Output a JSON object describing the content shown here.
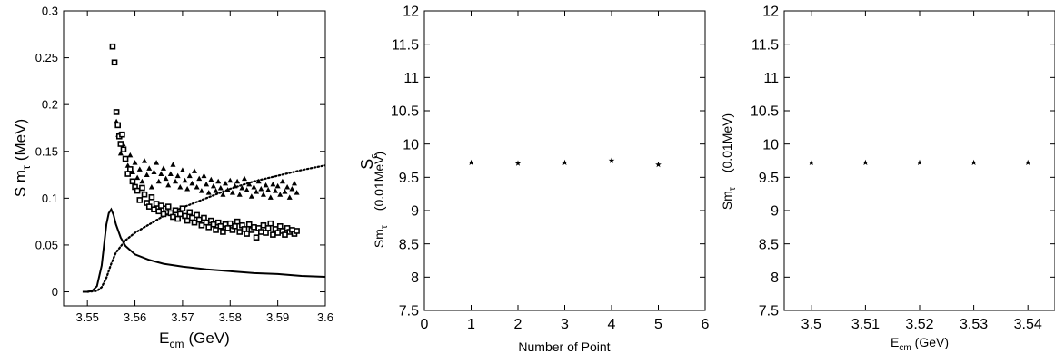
{
  "figure": {
    "panel_a": {
      "xlabel": "E",
      "xlabel_sub": "cm",
      "xlabel_unit": "(GeV)",
      "ylabel": "S m",
      "ylabel_sub": "τ",
      "ylabel_unit": "(MeV)"
    },
    "panel_b": {
      "xlabel": "Number of Point",
      "ylabel_top": "S",
      "ylabel_top_sub": "c",
      "ylabel": "Sm",
      "ylabel_sub": "τ",
      "ylabel_unit": "(0.01MeV)"
    },
    "panel_c": {
      "xlabel": "E",
      "xlabel_sub": "cm",
      "xlabel_unit": "(GeV)",
      "ylabel": "Sm",
      "ylabel_sub": "τ",
      "ylabel_unit": "(0.01MeV)"
    }
  },
  "chart_data": [
    {
      "type": "scatter",
      "title": "",
      "xlim": [
        3.545,
        3.6
      ],
      "ylim": [
        -0.015,
        0.3
      ],
      "xticks": [
        "3.55",
        "3.56",
        "3.57",
        "3.58",
        "3.59",
        "3.6"
      ],
      "yticks": [
        "0",
        "0.05",
        "0.1",
        "0.15",
        "0.2",
        "0.25",
        "0.3"
      ],
      "series": [
        {
          "style": "solid-line",
          "x": [
            3.549,
            3.55,
            3.551,
            3.552,
            3.553,
            3.5535,
            3.554,
            3.5545,
            3.555,
            3.5555,
            3.556,
            3.557,
            3.558,
            3.56,
            3.563,
            3.566,
            3.57,
            3.575,
            3.58,
            3.585,
            3.59,
            3.595,
            3.6
          ],
          "y": [
            0.0,
            0.0,
            0.001,
            0.006,
            0.028,
            0.05,
            0.072,
            0.084,
            0.088,
            0.082,
            0.072,
            0.058,
            0.049,
            0.04,
            0.034,
            0.03,
            0.027,
            0.024,
            0.022,
            0.02,
            0.019,
            0.017,
            0.016
          ]
        },
        {
          "style": "dotted-line",
          "x": [
            3.55,
            3.552,
            3.553,
            3.554,
            3.555,
            3.556,
            3.558,
            3.56,
            3.563,
            3.566,
            3.57,
            3.575,
            3.58,
            3.585,
            3.59,
            3.595,
            3.6
          ],
          "y": [
            0.0,
            0.001,
            0.005,
            0.015,
            0.03,
            0.042,
            0.055,
            0.063,
            0.072,
            0.081,
            0.09,
            0.1,
            0.11,
            0.118,
            0.124,
            0.13,
            0.135
          ]
        },
        {
          "style": "triangle",
          "x": [
            3.5561,
            3.5565,
            3.557,
            3.5575,
            3.558,
            3.5585,
            3.559,
            3.5595,
            3.56,
            3.5605,
            3.561,
            3.5615,
            3.562,
            3.5625,
            3.563,
            3.5635,
            3.564,
            3.5645,
            3.565,
            3.5655,
            3.566,
            3.5665,
            3.567,
            3.5675,
            3.568,
            3.5685,
            3.569,
            3.5695,
            3.57,
            3.5705,
            3.571,
            3.5715,
            3.572,
            3.5725,
            3.573,
            3.5735,
            3.574,
            3.5745,
            3.575,
            3.5755,
            3.576,
            3.5765,
            3.577,
            3.5775,
            3.578,
            3.5785,
            3.579,
            3.5795,
            3.58,
            3.5805,
            3.581,
            3.5815,
            3.582,
            3.5825,
            3.583,
            3.5835,
            3.584,
            3.5845,
            3.585,
            3.5855,
            3.586,
            3.5865,
            3.587,
            3.5875,
            3.588,
            3.5885,
            3.589,
            3.5895,
            3.59,
            3.5905,
            3.591,
            3.5915,
            3.592,
            3.5925,
            3.593,
            3.5935,
            3.594
          ],
          "y": [
            0.182,
            0.168,
            0.148,
            0.158,
            0.142,
            0.135,
            0.146,
            0.128,
            0.138,
            0.122,
            0.131,
            0.118,
            0.14,
            0.125,
            0.132,
            0.112,
            0.128,
            0.138,
            0.118,
            0.126,
            0.132,
            0.121,
            0.114,
            0.126,
            0.136,
            0.118,
            0.124,
            0.112,
            0.13,
            0.119,
            0.11,
            0.124,
            0.116,
            0.129,
            0.112,
            0.121,
            0.108,
            0.124,
            0.115,
            0.106,
            0.12,
            0.113,
            0.108,
            0.118,
            0.111,
            0.104,
            0.116,
            0.109,
            0.119,
            0.106,
            0.113,
            0.118,
            0.104,
            0.111,
            0.121,
            0.109,
            0.115,
            0.102,
            0.112,
            0.107,
            0.118,
            0.11,
            0.104,
            0.114,
            0.109,
            0.101,
            0.115,
            0.108,
            0.113,
            0.104,
            0.118,
            0.107,
            0.112,
            0.101,
            0.11,
            0.116,
            0.106
          ]
        },
        {
          "style": "open-square",
          "x": [
            3.5553,
            3.5557,
            3.5561,
            3.5564,
            3.5567,
            3.557,
            3.5573,
            3.5576,
            3.558,
            3.5585,
            3.559,
            3.5595,
            3.56,
            3.5605,
            3.561,
            3.5615,
            3.562,
            3.5625,
            3.563,
            3.5635,
            3.564,
            3.5645,
            3.565,
            3.5655,
            3.566,
            3.5665,
            3.567,
            3.5675,
            3.568,
            3.5685,
            3.569,
            3.5695,
            3.57,
            3.5705,
            3.571,
            3.5715,
            3.572,
            3.5725,
            3.573,
            3.5735,
            3.574,
            3.5745,
            3.575,
            3.5755,
            3.576,
            3.5765,
            3.577,
            3.5775,
            3.578,
            3.5785,
            3.579,
            3.5795,
            3.58,
            3.5805,
            3.581,
            3.5815,
            3.582,
            3.5825,
            3.583,
            3.5835,
            3.584,
            3.5845,
            3.585,
            3.5855,
            3.586,
            3.5865,
            3.587,
            3.5875,
            3.588,
            3.5885,
            3.589,
            3.5895,
            3.59,
            3.5905,
            3.591,
            3.5915,
            3.592,
            3.5925,
            3.593,
            3.5935,
            3.594
          ],
          "y": [
            0.262,
            0.245,
            0.192,
            0.178,
            0.166,
            0.158,
            0.168,
            0.152,
            0.142,
            0.126,
            0.131,
            0.118,
            0.112,
            0.108,
            0.098,
            0.111,
            0.104,
            0.095,
            0.091,
            0.101,
            0.088,
            0.094,
            0.086,
            0.092,
            0.083,
            0.089,
            0.091,
            0.084,
            0.08,
            0.087,
            0.078,
            0.083,
            0.089,
            0.081,
            0.076,
            0.085,
            0.079,
            0.074,
            0.082,
            0.077,
            0.071,
            0.079,
            0.074,
            0.069,
            0.076,
            0.072,
            0.066,
            0.074,
            0.07,
            0.064,
            0.072,
            0.068,
            0.073,
            0.066,
            0.07,
            0.075,
            0.064,
            0.071,
            0.067,
            0.062,
            0.072,
            0.066,
            0.069,
            0.058,
            0.068,
            0.064,
            0.071,
            0.063,
            0.068,
            0.073,
            0.061,
            0.067,
            0.063,
            0.07,
            0.065,
            0.061,
            0.068,
            0.064,
            0.066,
            0.062,
            0.065
          ]
        }
      ]
    },
    {
      "type": "scatter",
      "title": "",
      "xlim": [
        0,
        6
      ],
      "ylim": [
        7.5,
        12
      ],
      "xticks": [
        "0",
        "1",
        "2",
        "3",
        "4",
        "5",
        "6"
      ],
      "yticks": [
        "7.5",
        "8",
        "8.5",
        "9",
        "9.5",
        "10",
        "10.5",
        "11",
        "11.5",
        "12"
      ],
      "series": [
        {
          "style": "star",
          "x": [
            1,
            2,
            3,
            4,
            5
          ],
          "y": [
            9.72,
            9.71,
            9.72,
            9.75,
            9.69
          ]
        }
      ]
    },
    {
      "type": "scatter",
      "title": "",
      "xlim": [
        3.495,
        3.545
      ],
      "ylim": [
        7.5,
        12
      ],
      "xticks": [
        "3.5",
        "3.51",
        "3.52",
        "3.53",
        "3.54"
      ],
      "yticks": [
        "7.5",
        "8",
        "8.5",
        "9",
        "9.5",
        "10",
        "10.5",
        "11",
        "11.5",
        "12"
      ],
      "series": [
        {
          "style": "star",
          "x": [
            3.5,
            3.51,
            3.52,
            3.53,
            3.54
          ],
          "y": [
            9.72,
            9.72,
            9.72,
            9.72,
            9.72
          ]
        }
      ]
    }
  ]
}
